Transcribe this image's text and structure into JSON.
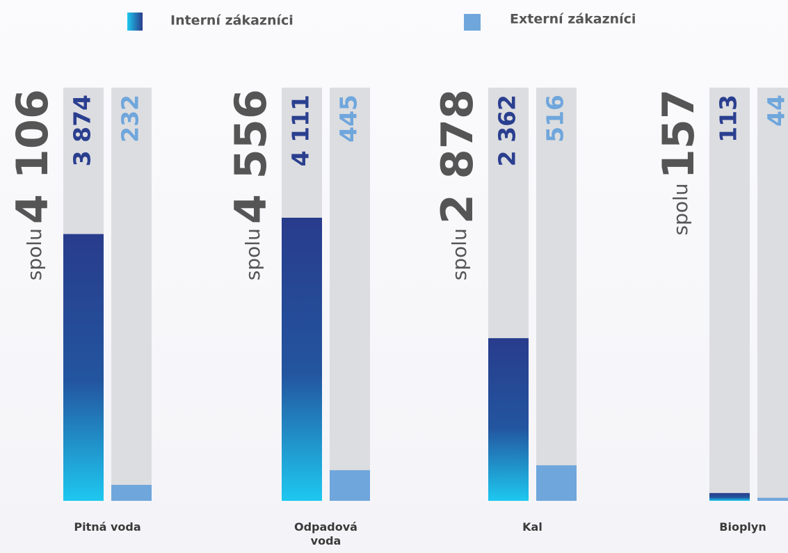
{
  "chart_data": {
    "type": "bar",
    "categories": [
      "Pitná voda",
      "Odpadová voda",
      "Kal",
      "Bioplyn"
    ],
    "series": [
      {
        "name": "Interní zákazníci",
        "color": "#283c8c",
        "values": [
          3874,
          4111,
          2362,
          113
        ],
        "value_labels": [
          "3 874",
          "4 111",
          "2 362",
          "113"
        ]
      },
      {
        "name": "Externí zákazníci",
        "color": "#6fa6dc",
        "values": [
          232,
          445,
          516,
          44
        ],
        "value_labels": [
          "232",
          "445",
          "516",
          "44"
        ]
      }
    ],
    "total_label": "spolu",
    "totals": {
      "values": [
        4106,
        4556,
        2878,
        157
      ],
      "value_labels": [
        "4 106",
        "4 556",
        "2 878",
        "157"
      ]
    },
    "ylim": [
      0,
      6000
    ]
  }
}
